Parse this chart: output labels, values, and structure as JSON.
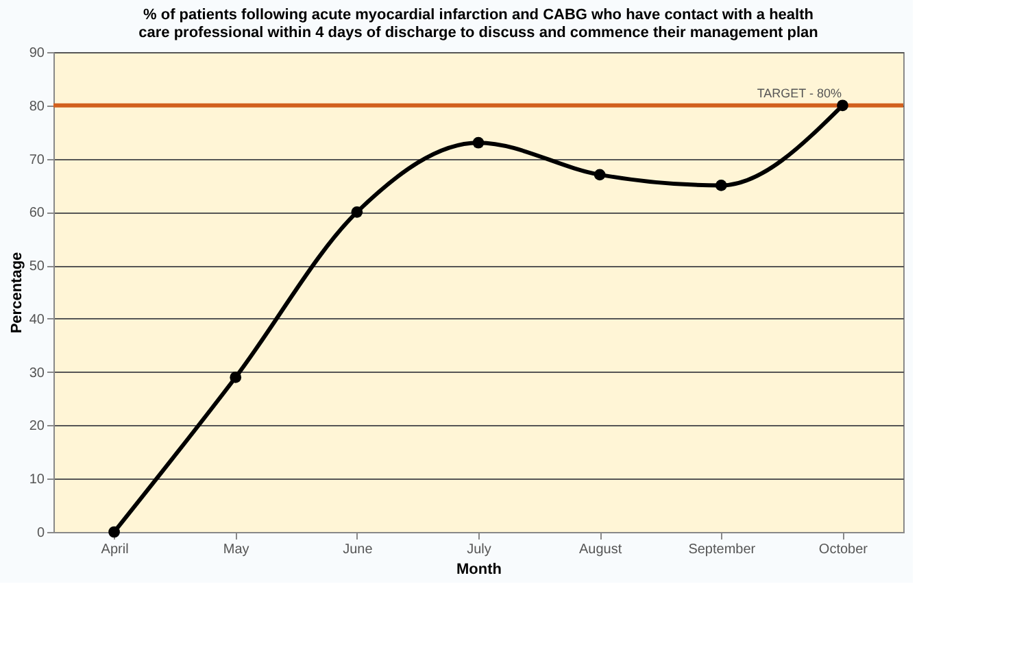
{
  "chart_data": {
    "type": "line",
    "title": "% of patients following acute myocardial infarction and CABG who have contact with a health care professional within 4 days of discharge to discuss and commence their management plan",
    "xlabel": "Month",
    "ylabel": "Percentage",
    "categories": [
      "April",
      "May",
      "June",
      "July",
      "August",
      "September",
      "October"
    ],
    "series": [
      {
        "color": "#000000",
        "values": [
          0,
          29,
          60,
          73,
          67,
          65,
          80
        ]
      }
    ],
    "ylim": [
      0,
      90
    ],
    "yticks": [
      0,
      10,
      20,
      30,
      40,
      50,
      60,
      70,
      80,
      90
    ],
    "grid": "y",
    "marker": "circle",
    "line_style": "solid",
    "ref_lines": [
      {
        "axis": "y",
        "value": 80,
        "label": "TARGET - 80%",
        "color": "#d2601e"
      }
    ]
  }
}
